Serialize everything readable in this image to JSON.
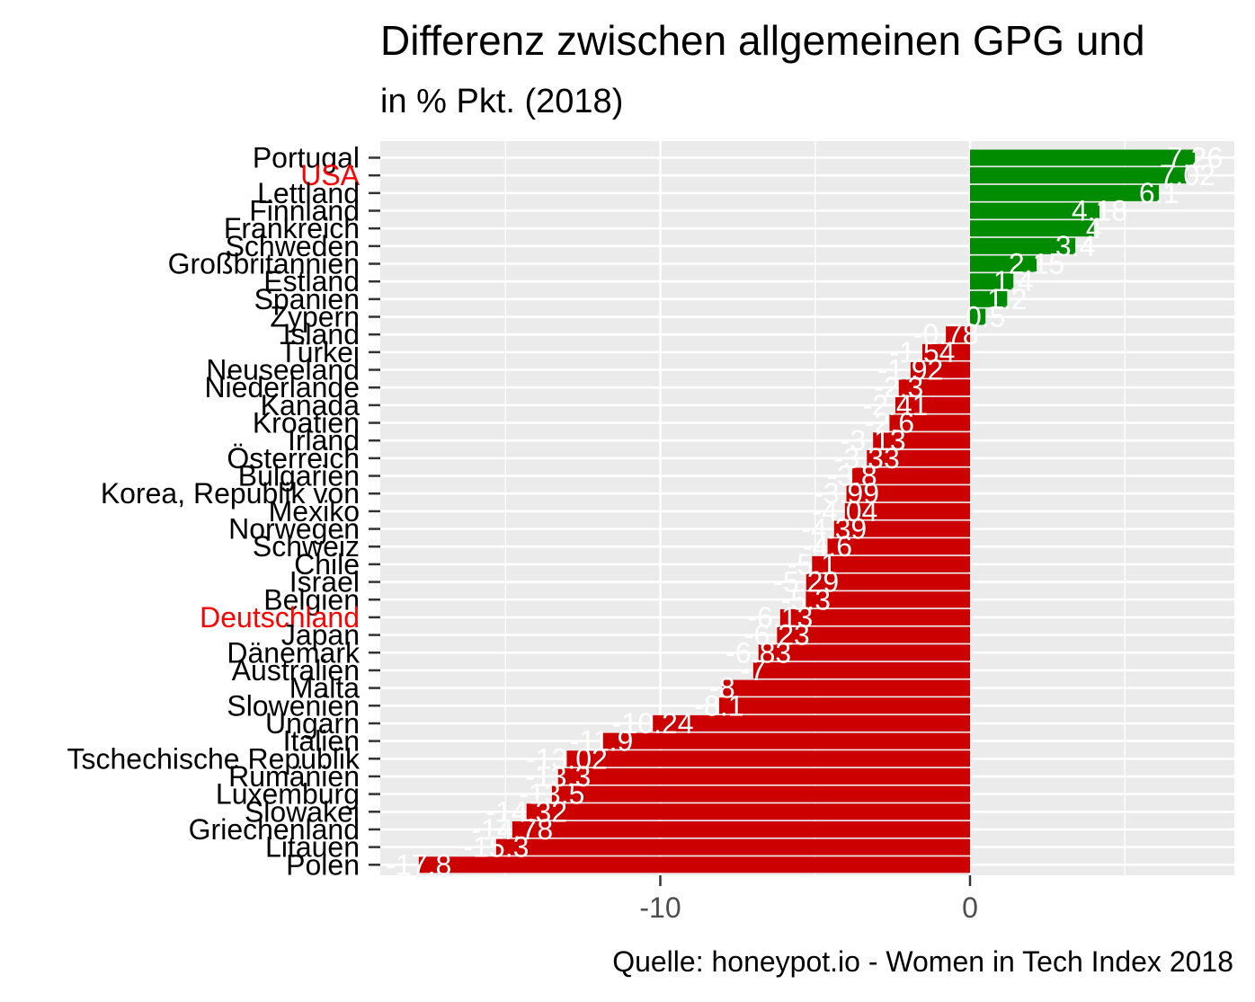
{
  "title": "Differenz zwischen allgemeinen GPG und",
  "subtitle": "in % Pkt. (2018)",
  "caption": "Quelle: honeypot.io - Women in Tech Index 2018",
  "colors": {
    "positive": "#008B00",
    "negative": "#CD0000",
    "highlight_label": "#FF0000",
    "panel": "#EBEBEB",
    "grid": "#FFFFFF",
    "tick_text": "#4D4D4D",
    "value_label": "#FFFFFF"
  },
  "chart_data": {
    "type": "bar",
    "orientation": "horizontal",
    "title": "Differenz zwischen allgemeinen GPG und",
    "subtitle": "in % Pkt. (2018)",
    "xlabel": "",
    "ylabel": "",
    "xlim": [
      -19,
      8.5
    ],
    "x_ticks": [
      -10,
      0
    ],
    "grid": true,
    "legend": "none",
    "highlighted_categories": [
      "USA",
      "Deutschland"
    ],
    "categories": [
      "Portugal",
      "USA",
      "Lettland",
      "Finnland",
      "Frankreich",
      "Schweden",
      "Großbritannien",
      "Estland",
      "Spanien",
      "Zypern",
      "Island",
      "Türkei",
      "Neuseeland",
      "Niederlande",
      "Kanada",
      "Kroatien",
      "Irland",
      "Österreich",
      "Bulgarien",
      "Korea, Republik von",
      "Mexiko",
      "Norwegen",
      "Schweiz",
      "Chile",
      "Israel",
      "Belgien",
      "Deutschland",
      "Japan",
      "Dänemark",
      "Australien",
      "Malta",
      "Slowenien",
      "Ungarn",
      "Italien",
      "Tschechische Republik",
      "Rumänien",
      "Luxemburg",
      "Slowakei",
      "Griechenland",
      "Litauen",
      "Polen"
    ],
    "values": [
      7.26,
      7.02,
      6.1,
      4.18,
      4,
      3.4,
      2.15,
      1.4,
      1.2,
      0.5,
      -0.78,
      -1.54,
      -1.92,
      -2.3,
      -2.41,
      -2.6,
      -3.13,
      -3.33,
      -3.8,
      -3.99,
      -4.04,
      -4.39,
      -4.6,
      -5.1,
      -5.29,
      -5.3,
      -6.13,
      -6.23,
      -6.83,
      -7,
      -8,
      -8.1,
      -10.24,
      -11.9,
      -13.02,
      -13.3,
      -13.5,
      -14.32,
      -14.78,
      -15.3,
      -17.8
    ],
    "value_labels": [
      "7.26",
      "7.02",
      "6.1",
      "4.18",
      "4",
      "3.4",
      "2.15",
      "1.4",
      "1.2",
      "0.5",
      "-0.78",
      "-1.54",
      "-1.92",
      "-2.3",
      "-2.41",
      "-2.6",
      "-3.13",
      "-3.33",
      "-3.8",
      "-3.99",
      "-4.04",
      "-4.39",
      "-4.6",
      "-5.1",
      "-5.29",
      "-5.3",
      "-6.13",
      "-6.23",
      "-6.83",
      "-7",
      "-8",
      "-8.1",
      "-10.24",
      "-11.9",
      "-13.02",
      "-13.3",
      "-13.5",
      "-14.32",
      "-14.78",
      "-15.3",
      "-17.8"
    ]
  }
}
